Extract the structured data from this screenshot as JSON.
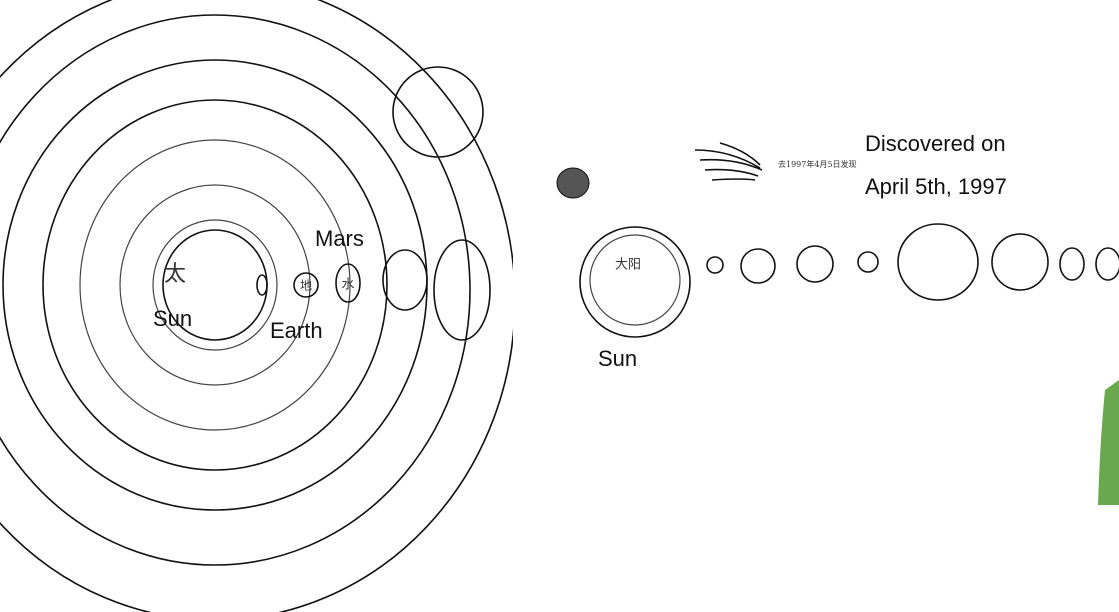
{
  "left_sketch": {
    "labels": {
      "sun_char": "太",
      "earth_char": "地",
      "mercury_char": "水",
      "mars": "Mars",
      "sun": "Sun",
      "earth": "Earth"
    }
  },
  "right_sketch": {
    "labels": {
      "sun_char": "大阳",
      "comet_note": "去1997年4月5日发现",
      "discovered_line1": "Discovered on",
      "discovered_line2": "April 5th, 1997",
      "sun": "Sun"
    }
  }
}
